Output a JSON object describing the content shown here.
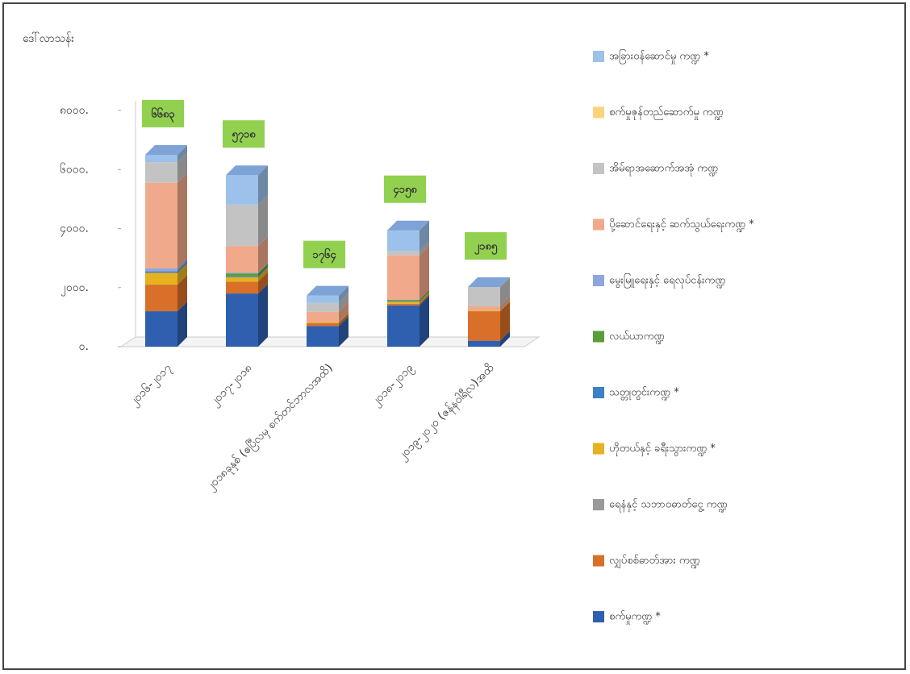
{
  "chart_data": {
    "type": "bar3d_stacked",
    "y_label": "ဒေါ်လာသန်း",
    "categories": [
      "၂၀၁၆-၂၀၁၇",
      "၂၀၁၇-၂၀၁၈",
      "၂၀၁၈ခုနှစ် (ဧပြီလမှ စက်တင်ဘာလအထိ)",
      "၂၀၁၈-၂၀၁၉",
      "၂၀၁၉-၂၀၂၀ (ဇန်နဝါရီလ)အထိ"
    ],
    "annotations": [
      "၆၆၈၃",
      "၅၇၁၈",
      "၁၇၆၄",
      "၄၁၅၈",
      "၂၁၈၅"
    ],
    "ylim": [
      0,
      8000
    ],
    "yticks": [
      {
        "value": 0,
        "label": "၀."
      },
      {
        "value": 2000,
        "label": "၂၀၀၀."
      },
      {
        "value": 4000,
        "label": "၄၀၀၀."
      },
      {
        "value": 6000,
        "label": "၆၀၀၀."
      },
      {
        "value": 8000,
        "label": "၈၀၀၀."
      }
    ],
    "grid": false,
    "series": [
      {
        "name": "စက်မှုကဏ္ဍ *",
        "color": "#2f5faf",
        "values": [
          1200,
          1800,
          700,
          1400,
          200
        ]
      },
      {
        "name": "လျှပ်စစ်ဓာတ်အား ကဏ္ဍ",
        "color": "#d8702a",
        "values": [
          900,
          400,
          100,
          50,
          1000
        ]
      },
      {
        "name": "ရေနံနှင့် သဘာဝဓာတ်ငွေ့ ကဏ္ဍ",
        "color": "#9a9a9a",
        "values": [
          0,
          0,
          0,
          0,
          0
        ]
      },
      {
        "name": "ဟိုတယ်နှင့် ခရီးသွားကဏ္ဍ *",
        "color": "#e7b11f",
        "values": [
          400,
          150,
          30,
          80,
          20
        ]
      },
      {
        "name": "သတ္တုတွင်းကဏ္ဍ *",
        "color": "#3f7fc4",
        "values": [
          50,
          30,
          0,
          30,
          0
        ]
      },
      {
        "name": "လယ်ယာကဏ္ဍ",
        "color": "#5a9e3a",
        "values": [
          0,
          100,
          0,
          30,
          0
        ]
      },
      {
        "name": "မွေးမြူရေးနှင့် ရေလုပ်ငန်းကဏ္ဍ",
        "color": "#8ea6e0",
        "values": [
          100,
          30,
          0,
          0,
          0
        ]
      },
      {
        "name": "ပို့ဆောင်ရေးနှင့် ဆက်သွယ်ရေးကဏ္ဍ *",
        "color": "#f0a98a",
        "values": [
          2900,
          900,
          350,
          1500,
          150
        ]
      },
      {
        "name": "အိမ်ရာအဆောက်အအုံ ကဏ္ဍ",
        "color": "#c3c3c3",
        "values": [
          700,
          1400,
          300,
          150,
          650
        ]
      },
      {
        "name": "စက်မှုဇုန်တည်ဆောက်မှု ကဏ္ဍ",
        "color": "#fdd27e",
        "values": [
          0,
          0,
          0,
          0,
          0
        ]
      },
      {
        "name": "အခြားဝန်ဆောင်မှု ကဏ္ဍ *",
        "color": "#9cc1ea",
        "values": [
          250,
          1000,
          250,
          700,
          0
        ]
      }
    ]
  }
}
